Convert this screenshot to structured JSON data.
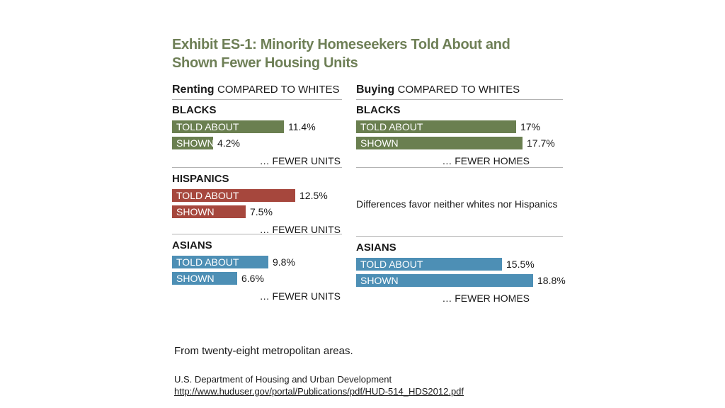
{
  "title_line1": "Exhibit ES-1: Minority Homeseekers Told About and",
  "title_line2": "Shown Fewer Housing Units",
  "colors": {
    "blacks": "#6a7f50",
    "hispanics": "#a6473d",
    "asians": "#4d8fb5",
    "title": "#6e7f56"
  },
  "chart_data": [
    {
      "type": "bar",
      "panel": "renting",
      "title_bold": "Renting",
      "title_rest": "COMPARED TO WHITES",
      "unit": "%",
      "xlim": [
        0,
        20
      ],
      "groups": [
        {
          "name": "BLACKS",
          "color_key": "blacks",
          "bars": [
            {
              "label": "TOLD ABOUT",
              "value": 11.4,
              "text": "11.4%"
            },
            {
              "label": "SHOWN",
              "value": 4.2,
              "text": "4.2%"
            }
          ],
          "footnote": "… FEWER UNITS"
        },
        {
          "name": "HISPANICS",
          "color_key": "hispanics",
          "bars": [
            {
              "label": "TOLD ABOUT",
              "value": 12.5,
              "text": "12.5%"
            },
            {
              "label": "SHOWN",
              "value": 7.5,
              "text": "7.5%"
            }
          ],
          "footnote": "… FEWER UNITS"
        },
        {
          "name": "ASIANS",
          "color_key": "asians",
          "bars": [
            {
              "label": "TOLD ABOUT",
              "value": 9.8,
              "text": "9.8%"
            },
            {
              "label": "SHOWN",
              "value": 6.6,
              "text": "6.6%"
            }
          ],
          "footnote": "… FEWER UNITS"
        }
      ]
    },
    {
      "type": "bar",
      "panel": "buying",
      "title_bold": "Buying",
      "title_rest": "COMPARED TO WHITES",
      "unit": "%",
      "xlim": [
        0,
        20
      ],
      "groups": [
        {
          "name": "BLACKS",
          "color_key": "blacks",
          "bars": [
            {
              "label": "TOLD ABOUT",
              "value": 17,
              "text": "17%"
            },
            {
              "label": "SHOWN",
              "value": 17.7,
              "text": "17.7%"
            }
          ],
          "footnote": "… FEWER HOMES"
        },
        {
          "name": "",
          "note": "Differences favor neither whites nor Hispanics",
          "bars": []
        },
        {
          "name": "ASIANS",
          "color_key": "asians",
          "bars": [
            {
              "label": "TOLD ABOUT",
              "value": 15.5,
              "text": "15.5%"
            },
            {
              "label": "SHOWN",
              "value": 18.8,
              "text": "18.8%"
            }
          ],
          "footnote": "… FEWER HOMES"
        }
      ]
    }
  ],
  "footer": {
    "main": "From twenty-eight metropolitan areas.",
    "source": "U.S. Department of Housing and Urban Development",
    "url": "http://www.huduser.gov/portal/Publications/pdf/HUD-514_HDS2012.pdf"
  }
}
